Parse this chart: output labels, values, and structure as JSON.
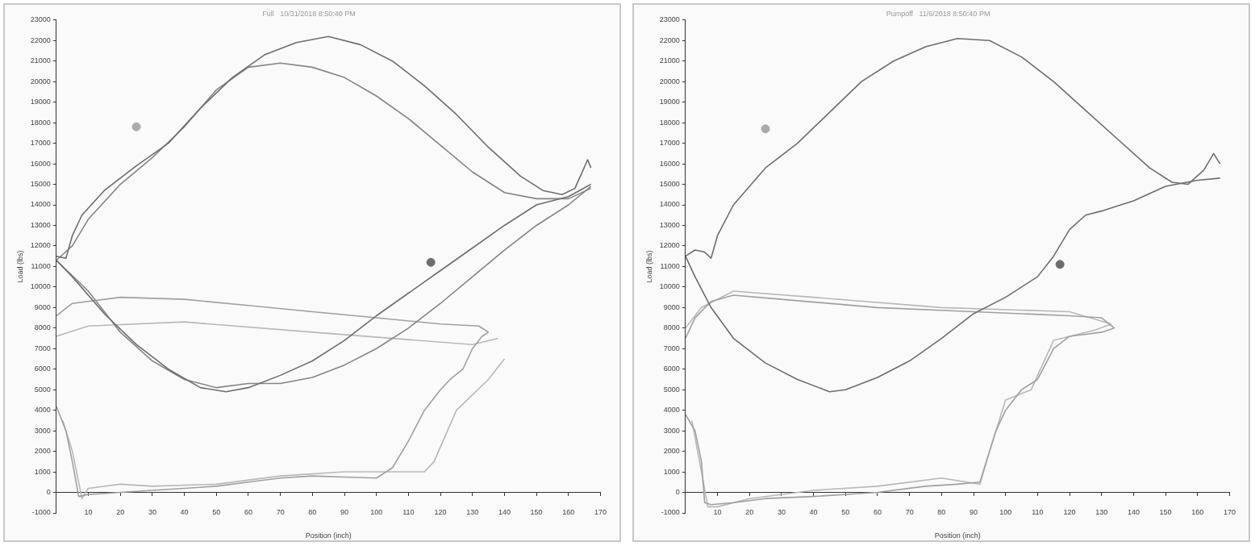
{
  "chart_data": [
    {
      "type": "line",
      "title": "Full   10/31/2018 8:50:40 PM",
      "xlabel": "Position (inch)",
      "ylabel": "Load (lbs)",
      "xlim": [
        0,
        170
      ],
      "xticks": [
        10,
        20,
        30,
        40,
        50,
        60,
        70,
        80,
        90,
        100,
        110,
        120,
        130,
        140,
        150,
        160,
        170
      ],
      "ylim": [
        -1000,
        23000
      ],
      "yticks": [
        -1000,
        0,
        1000,
        2000,
        3000,
        4000,
        5000,
        6000,
        7000,
        8000,
        9000,
        10000,
        11000,
        12000,
        13000,
        14000,
        15000,
        16000,
        17000,
        18000,
        19000,
        20000,
        21000,
        22000,
        23000
      ],
      "grid": false,
      "legend": false,
      "marker": "none",
      "line_style": "solid",
      "series": [
        {
          "color": "#6e6e6e",
          "x": [
            0,
            3,
            5,
            8,
            15,
            25,
            35,
            45,
            55,
            65,
            75,
            85,
            95,
            105,
            115,
            125,
            135,
            145,
            152,
            158,
            162,
            164,
            166,
            167
          ],
          "values": [
            11500,
            11400,
            12500,
            13500,
            14700,
            15900,
            17000,
            18700,
            20200,
            21300,
            21900,
            22200,
            21800,
            21000,
            19800,
            18400,
            16800,
            15400,
            14700,
            14500,
            14800,
            15500,
            16200,
            15800
          ]
        },
        {
          "color": "#6e6e6e",
          "x": [
            0,
            5,
            15,
            25,
            35,
            45,
            53,
            60,
            70,
            80,
            90,
            100,
            110,
            120,
            130,
            140,
            150,
            160,
            167
          ],
          "values": [
            11300,
            10500,
            8700,
            7200,
            6000,
            5100,
            4900,
            5100,
            5700,
            6400,
            7400,
            8600,
            9700,
            10800,
            11900,
            13000,
            14000,
            14400,
            15000
          ]
        },
        {
          "color": "#858585",
          "x": [
            0,
            5,
            10,
            20,
            30,
            40,
            50,
            60,
            70,
            80,
            90,
            100,
            110,
            120,
            130,
            140,
            150,
            160,
            167
          ],
          "values": [
            11300,
            12000,
            13300,
            15000,
            16300,
            17800,
            19600,
            20700,
            20900,
            20700,
            20200,
            19300,
            18200,
            16900,
            15600,
            14600,
            14300,
            14300,
            14800
          ]
        },
        {
          "color": "#858585",
          "x": [
            0,
            10,
            20,
            30,
            40,
            50,
            60,
            70,
            80,
            90,
            100,
            110,
            120,
            130,
            140,
            150,
            160,
            167
          ],
          "values": [
            11300,
            9800,
            7800,
            6400,
            5500,
            5100,
            5300,
            5300,
            5600,
            6200,
            7000,
            8000,
            9200,
            10500,
            11800,
            13000,
            14000,
            14900
          ]
        },
        {
          "color": "#a0a0a0",
          "x": [
            0,
            5,
            20,
            40,
            60,
            80,
            100,
            120,
            132,
            135
          ],
          "values": [
            8600,
            9200,
            9500,
            9400,
            9100,
            8800,
            8500,
            8200,
            8100,
            7800
          ]
        },
        {
          "color": "#a0a0a0",
          "x": [
            0,
            3,
            5,
            7,
            10,
            20,
            30,
            40,
            50,
            60,
            70,
            80,
            90,
            100,
            105,
            110,
            115,
            120,
            123,
            127,
            130,
            133,
            135
          ],
          "values": [
            4200,
            3000,
            1500,
            -200,
            -100,
            0,
            100,
            200,
            300,
            500,
            700,
            800,
            750,
            700,
            1200,
            2500,
            4000,
            5000,
            5500,
            6000,
            7000,
            7600,
            7800
          ]
        },
        {
          "color": "#b8b8b8",
          "x": [
            0,
            10,
            40,
            80,
            130,
            138
          ],
          "values": [
            7600,
            8100,
            8300,
            7800,
            7200,
            7500
          ]
        },
        {
          "color": "#b8b8b8",
          "x": [
            2,
            5,
            8,
            10,
            20,
            30,
            50,
            70,
            90,
            105,
            115,
            118,
            125,
            135,
            140
          ],
          "values": [
            3500,
            2000,
            -300,
            200,
            400,
            300,
            400,
            800,
            1000,
            1000,
            1000,
            1500,
            4000,
            5500,
            6500
          ]
        },
        {
          "type": "scatter",
          "color": "#aaaaaa",
          "x": [
            25
          ],
          "values": [
            17800
          ],
          "marker": "circle"
        },
        {
          "type": "scatter",
          "color": "#6e6e6e",
          "x": [
            117
          ],
          "values": [
            11200
          ],
          "marker": "circle"
        }
      ]
    },
    {
      "type": "line",
      "title": "Pumpoff   11/6/2018 8:50:40 PM",
      "xlabel": "Position (inch)",
      "ylabel": "Load (lbs)",
      "xlim": [
        0,
        170
      ],
      "xticks": [
        10,
        20,
        30,
        40,
        50,
        60,
        70,
        80,
        90,
        100,
        110,
        120,
        130,
        140,
        150,
        160,
        170
      ],
      "ylim": [
        -1000,
        23000
      ],
      "yticks": [
        -1000,
        0,
        1000,
        2000,
        3000,
        4000,
        5000,
        6000,
        7000,
        8000,
        9000,
        10000,
        11000,
        12000,
        13000,
        14000,
        15000,
        16000,
        17000,
        18000,
        19000,
        20000,
        21000,
        22000,
        23000
      ],
      "grid": false,
      "legend": false,
      "marker": "none",
      "line_style": "solid",
      "series": [
        {
          "color": "#6e6e6e",
          "x": [
            0,
            3,
            6,
            8,
            10,
            15,
            25,
            35,
            45,
            55,
            65,
            75,
            85,
            95,
            105,
            115,
            125,
            135,
            145,
            152,
            157,
            162,
            165,
            167
          ],
          "values": [
            11500,
            11800,
            11700,
            11400,
            12500,
            14000,
            15800,
            17000,
            18500,
            20000,
            21000,
            21700,
            22100,
            22000,
            21200,
            20000,
            18600,
            17200,
            15800,
            15100,
            15000,
            15700,
            16500,
            16000
          ]
        },
        {
          "color": "#6e6e6e",
          "x": [
            0,
            3,
            8,
            15,
            25,
            35,
            45,
            50,
            60,
            70,
            80,
            90,
            100,
            110,
            115,
            120,
            125,
            130,
            140,
            150,
            160,
            167
          ],
          "values": [
            11500,
            10500,
            9000,
            7500,
            6300,
            5500,
            4900,
            5000,
            5600,
            6400,
            7500,
            8700,
            9500,
            10500,
            11500,
            12800,
            13500,
            13700,
            14200,
            14900,
            15200,
            15300
          ]
        },
        {
          "color": "#a0a0a0",
          "x": [
            0,
            3,
            8,
            15,
            30,
            60,
            90,
            120,
            130,
            134
          ],
          "values": [
            7500,
            8500,
            9300,
            9600,
            9400,
            9000,
            8800,
            8600,
            8500,
            8000
          ]
        },
        {
          "color": "#a0a0a0",
          "x": [
            0,
            3,
            5,
            6,
            8,
            15,
            25,
            40,
            60,
            75,
            85,
            92,
            94,
            97,
            100,
            105,
            110,
            115,
            120,
            125,
            130,
            134
          ],
          "values": [
            3800,
            3000,
            1500,
            -500,
            -600,
            -500,
            -300,
            -200,
            0,
            300,
            400,
            500,
            1500,
            3000,
            4000,
            5000,
            5500,
            7000,
            7600,
            7700,
            7800,
            8000
          ]
        },
        {
          "color": "#b8b8b8",
          "x": [
            0,
            5,
            15,
            40,
            80,
            120,
            133
          ],
          "values": [
            8000,
            9000,
            9800,
            9500,
            9000,
            8800,
            8200
          ]
        },
        {
          "color": "#b8b8b8",
          "x": [
            2,
            5,
            7,
            10,
            20,
            40,
            60,
            80,
            92,
            95,
            100,
            108,
            115,
            128,
            133
          ],
          "values": [
            3500,
            1000,
            -700,
            -700,
            -300,
            100,
            300,
            700,
            400,
            2000,
            4500,
            5000,
            7400,
            7900,
            8200
          ]
        },
        {
          "type": "scatter",
          "color": "#aaaaaa",
          "x": [
            25
          ],
          "values": [
            17700
          ],
          "marker": "circle"
        },
        {
          "type": "scatter",
          "color": "#6e6e6e",
          "x": [
            117
          ],
          "values": [
            11100
          ],
          "marker": "circle"
        }
      ]
    }
  ]
}
